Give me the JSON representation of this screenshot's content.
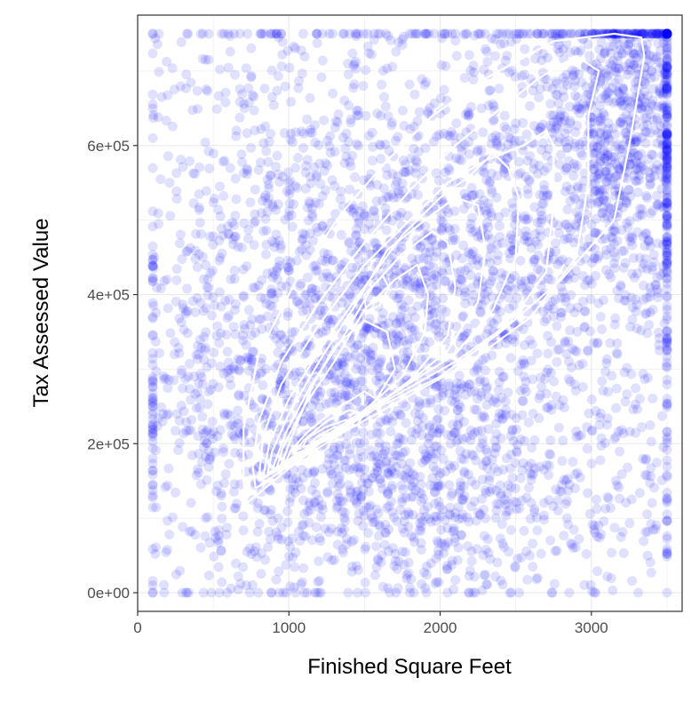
{
  "chart_data": {
    "type": "scatter",
    "title": "",
    "xlabel": "Finished Square Feet",
    "ylabel": "Tax Assessed Value",
    "xlim": [
      0,
      3600
    ],
    "ylim": [
      -25000,
      775000
    ],
    "x_ticks": [
      {
        "value": 0,
        "label": "0"
      },
      {
        "value": 1000,
        "label": "1000"
      },
      {
        "value": 2000,
        "label": "2000"
      },
      {
        "value": 3000,
        "label": "3000"
      }
    ],
    "y_ticks": [
      {
        "value": 0,
        "label": "0e+00"
      },
      {
        "value": 200000,
        "label": "2e+05"
      },
      {
        "value": 400000,
        "label": "4e+05"
      },
      {
        "value": 600000,
        "label": "6e+05"
      }
    ],
    "grid": true,
    "point_color": "#0000ff",
    "point_alpha": 0.12,
    "contour_color": "#ffffff",
    "background": "#ffffff",
    "gridline_color": "#ebebeb",
    "point_range": {
      "x": [
        100,
        3500
      ],
      "y": [
        0,
        750000
      ]
    },
    "contours": [
      [
        [
          720,
          120000
        ],
        [
          900,
          150000
        ],
        [
          1200,
          200000
        ],
        [
          1600,
          250000
        ],
        [
          2000,
          290000
        ],
        [
          2400,
          350000
        ],
        [
          2800,
          420000
        ],
        [
          3150,
          500000
        ],
        [
          3250,
          600000
        ],
        [
          3300,
          660000
        ],
        [
          3350,
          720000
        ],
        [
          3330,
          745000
        ],
        [
          3150,
          750000
        ],
        [
          2750,
          740000
        ],
        [
          2300,
          690000
        ],
        [
          1950,
          640000
        ],
        [
          1650,
          580000
        ],
        [
          1350,
          510000
        ],
        [
          1050,
          420000
        ],
        [
          800,
          320000
        ],
        [
          700,
          220000
        ],
        [
          700,
          150000
        ],
        [
          720,
          120000
        ]
      ],
      [
        [
          780,
          140000
        ],
        [
          1000,
          170000
        ],
        [
          1400,
          220000
        ],
        [
          1800,
          265000
        ],
        [
          2200,
          310000
        ],
        [
          2600,
          370000
        ],
        [
          2900,
          450000
        ],
        [
          2980,
          550000
        ],
        [
          2980,
          640000
        ],
        [
          3050,
          700000
        ],
        [
          2900,
          720000
        ],
        [
          2650,
          690000
        ],
        [
          2400,
          650000
        ],
        [
          2100,
          600000
        ],
        [
          1800,
          540000
        ],
        [
          1500,
          470000
        ],
        [
          1200,
          390000
        ],
        [
          950,
          310000
        ],
        [
          800,
          230000
        ],
        [
          760,
          170000
        ],
        [
          780,
          140000
        ]
      ],
      [
        [
          800,
          150000
        ],
        [
          1050,
          180000
        ],
        [
          1400,
          230000
        ],
        [
          1750,
          270000
        ],
        [
          2100,
          310000
        ],
        [
          2450,
          360000
        ],
        [
          2700,
          430000
        ],
        [
          2750,
          520000
        ],
        [
          2750,
          600000
        ],
        [
          2700,
          620000
        ],
        [
          2550,
          600000
        ],
        [
          2300,
          580000
        ],
        [
          2050,
          550000
        ],
        [
          1800,
          500000
        ],
        [
          1500,
          440000
        ],
        [
          1200,
          360000
        ],
        [
          950,
          280000
        ],
        [
          830,
          210000
        ],
        [
          800,
          150000
        ]
      ],
      [
        [
          830,
          155000
        ],
        [
          1100,
          185000
        ],
        [
          1400,
          230000
        ],
        [
          1750,
          275000
        ],
        [
          2100,
          320000
        ],
        [
          2350,
          380000
        ],
        [
          2500,
          450000
        ],
        [
          2520,
          530000
        ],
        [
          2450,
          570000
        ],
        [
          2350,
          590000
        ],
        [
          2200,
          560000
        ],
        [
          2000,
          530000
        ],
        [
          1750,
          480000
        ],
        [
          1500,
          410000
        ],
        [
          1250,
          340000
        ],
        [
          1000,
          260000
        ],
        [
          870,
          200000
        ],
        [
          830,
          155000
        ]
      ],
      [
        [
          860,
          160000
        ],
        [
          1150,
          195000
        ],
        [
          1450,
          235000
        ],
        [
          1750,
          275000
        ],
        [
          2050,
          325000
        ],
        [
          2250,
          390000
        ],
        [
          2300,
          460000
        ],
        [
          2250,
          520000
        ],
        [
          2100,
          530000
        ],
        [
          1900,
          500000
        ],
        [
          1650,
          460000
        ],
        [
          1420,
          380000
        ],
        [
          1200,
          310000
        ],
        [
          1000,
          240000
        ],
        [
          890,
          190000
        ],
        [
          860,
          160000
        ]
      ],
      [
        [
          890,
          165000
        ],
        [
          1200,
          200000
        ],
        [
          1500,
          240000
        ],
        [
          1800,
          285000
        ],
        [
          2050,
          345000
        ],
        [
          2100,
          410000
        ],
        [
          2050,
          470000
        ],
        [
          1950,
          485000
        ],
        [
          1750,
          455000
        ],
        [
          1550,
          410000
        ],
        [
          1350,
          340000
        ],
        [
          1150,
          280000
        ],
        [
          980,
          215000
        ],
        [
          890,
          165000
        ]
      ],
      [
        [
          920,
          168000
        ],
        [
          1200,
          205000
        ],
        [
          1500,
          245000
        ],
        [
          1750,
          290000
        ],
        [
          1900,
          350000
        ],
        [
          1920,
          400000
        ],
        [
          1850,
          440000
        ],
        [
          1700,
          420000
        ],
        [
          1500,
          380000
        ],
        [
          1300,
          310000
        ],
        [
          1100,
          250000
        ],
        [
          960,
          195000
        ],
        [
          920,
          168000
        ]
      ],
      [
        [
          950,
          172000
        ],
        [
          1250,
          210000
        ],
        [
          1550,
          250000
        ],
        [
          1700,
          300000
        ],
        [
          1650,
          350000
        ],
        [
          1500,
          365000
        ],
        [
          1300,
          330000
        ],
        [
          1150,
          275000
        ],
        [
          1020,
          210000
        ],
        [
          950,
          172000
        ]
      ],
      [
        [
          1500,
          400000
        ],
        [
          1620,
          425000
        ],
        [
          1660,
          410000
        ],
        [
          1600,
          385000
        ],
        [
          1510,
          378000
        ],
        [
          1500,
          400000
        ]
      ],
      [
        [
          980,
          176000
        ],
        [
          1250,
          205000
        ],
        [
          1500,
          240000
        ],
        [
          1580,
          260000
        ],
        [
          1500,
          270000
        ],
        [
          1300,
          245000
        ],
        [
          1120,
          215000
        ],
        [
          1010,
          190000
        ],
        [
          980,
          176000
        ]
      ],
      [
        [
          1030,
          185000
        ],
        [
          1250,
          205000
        ],
        [
          1450,
          225000
        ],
        [
          1500,
          240000
        ],
        [
          1400,
          245000
        ],
        [
          1250,
          230000
        ],
        [
          1100,
          205000
        ],
        [
          1030,
          185000
        ]
      ],
      [
        [
          1090,
          195000
        ],
        [
          1300,
          210000
        ],
        [
          1430,
          225000
        ],
        [
          1380,
          232000
        ],
        [
          1240,
          222000
        ],
        [
          1120,
          207000
        ],
        [
          1090,
          195000
        ]
      ],
      [
        [
          1140,
          200000
        ],
        [
          1300,
          213000
        ],
        [
          1380,
          222000
        ],
        [
          1300,
          222000
        ],
        [
          1190,
          210000
        ],
        [
          1140,
          200000
        ]
      ],
      [
        [
          1200,
          200000
        ],
        [
          1300,
          212000
        ],
        [
          1330,
          218000
        ],
        [
          1260,
          214000
        ],
        [
          1210,
          206000
        ],
        [
          1200,
          200000
        ]
      ]
    ],
    "clusters": [
      {
        "cx": 1500,
        "cy": 280000,
        "sx": 750,
        "sy": 140000,
        "n": 1200
      },
      {
        "cx": 2700,
        "cy": 520000,
        "sx": 700,
        "sy": 160000,
        "n": 1000
      },
      {
        "cx": 3250,
        "cy": 650000,
        "sx": 300,
        "sy": 110000,
        "n": 600
      },
      {
        "cx": 1000,
        "cy": 420000,
        "sx": 500,
        "sy": 200000,
        "n": 500
      },
      {
        "cx": 2200,
        "cy": 120000,
        "sx": 800,
        "sy": 60000,
        "n": 300
      }
    ]
  }
}
